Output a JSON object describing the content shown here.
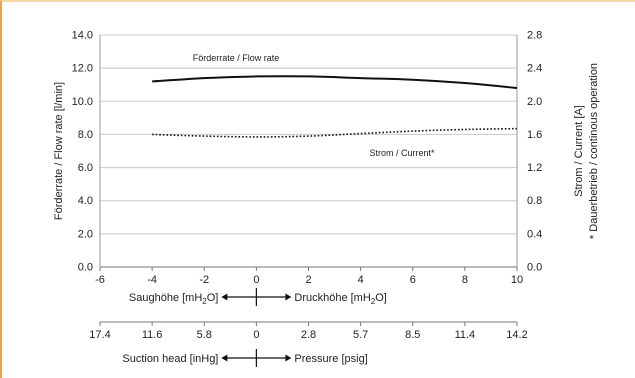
{
  "chart_data": {
    "type": "line",
    "x_axis": {
      "range": [
        -6,
        10
      ],
      "ticks": [
        -6,
        -4,
        -2,
        0,
        2,
        4,
        6,
        8,
        10
      ]
    },
    "y_left": {
      "label": "Förderrate / Flow rate [l/min]",
      "range": [
        0,
        14
      ],
      "ticks": [
        "0.0",
        "2.0",
        "4.0",
        "6.0",
        "8.0",
        "10.0",
        "12.0",
        "14.0"
      ]
    },
    "y_right": {
      "label1": "Strom / Current [A]",
      "label2": "* Dauerbetrieb / continous operation",
      "range": [
        0,
        2.8
      ],
      "ticks": [
        "0.0",
        "0.4",
        "0.8",
        "1.2",
        "1.6",
        "2.0",
        "2.4",
        "2.8"
      ]
    },
    "grid": "horizontal",
    "series": [
      {
        "name": "Förderrate / Flow rate",
        "axis": "left",
        "style": "solid",
        "color": "#111111",
        "x": [
          -4,
          -2,
          0,
          2,
          4,
          6,
          8,
          10
        ],
        "y": [
          11.2,
          11.4,
          11.5,
          11.5,
          11.4,
          11.3,
          11.1,
          10.8
        ]
      },
      {
        "name": "Strom / Current*",
        "axis": "right",
        "style": "dotted",
        "color": "#111111",
        "x": [
          -4,
          -2,
          0,
          2,
          4,
          6,
          8,
          10
        ],
        "y": [
          1.6,
          1.58,
          1.57,
          1.58,
          1.61,
          1.64,
          1.66,
          1.67
        ]
      }
    ]
  },
  "scale_1": {
    "left_label": "Saughöhe",
    "left_unit": "[mH",
    "left_unit_sub": "2",
    "left_unit_end": "O]",
    "right_label": "Druckhöhe",
    "right_unit": "[mH",
    "right_unit_sub": "2",
    "right_unit_end": "O]"
  },
  "scale_2": {
    "ticks": [
      "17.4",
      "11.6",
      "5.8",
      "0",
      "2.8",
      "5.7",
      "8.5",
      "11.4",
      "14.2"
    ],
    "left_label": "Suction head [inHg]",
    "right_label": "Pressure [psig]"
  }
}
